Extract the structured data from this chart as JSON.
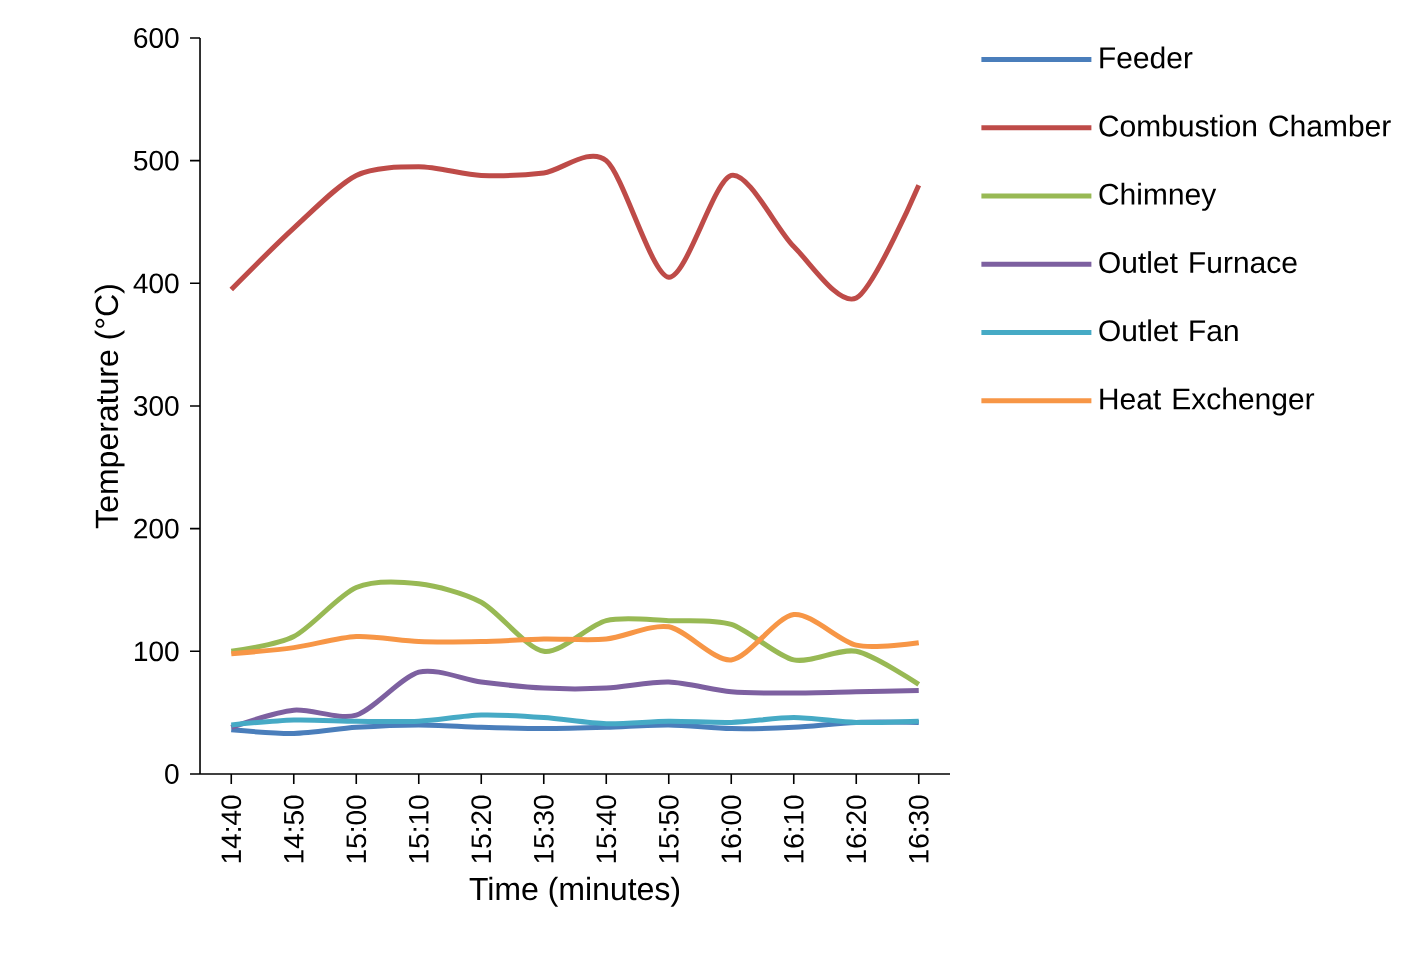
{
  "chart_data": {
    "type": "line",
    "xlabel": "Time (minutes)",
    "ylabel": "Temperature (°C)",
    "categories": [
      "14:40",
      "14:50",
      "15:00",
      "15:10",
      "15:20",
      "15:30",
      "15:40",
      "15:50",
      "16:00",
      "16:10",
      "16:20",
      "16:30"
    ],
    "ylim": [
      0,
      600
    ],
    "yticks": [
      0,
      100,
      200,
      300,
      400,
      500,
      600
    ],
    "grid": false,
    "legend": "right",
    "marker": "none",
    "line_style": "solid",
    "series": [
      {
        "name": "Feeder",
        "color": "#4a7ebb",
        "values": [
          36,
          33,
          38,
          40,
          38,
          37,
          38,
          40,
          37,
          38,
          42,
          42
        ]
      },
      {
        "name": "Combustion Chamber",
        "color": "#be4b48",
        "values": [
          395,
          445,
          488,
          495,
          488,
          490,
          500,
          405,
          488,
          430,
          388,
          480
        ]
      },
      {
        "name": "Chimney",
        "color": "#98b954",
        "values": [
          100,
          112,
          152,
          155,
          140,
          100,
          125,
          125,
          122,
          93,
          100,
          73
        ]
      },
      {
        "name": "Outlet Furnace",
        "color": "#7d60a0",
        "values": [
          38,
          52,
          48,
          83,
          75,
          70,
          70,
          75,
          67,
          66,
          67,
          68
        ]
      },
      {
        "name": "Outlet Fan",
        "color": "#46aac5",
        "values": [
          40,
          44,
          43,
          43,
          48,
          46,
          41,
          43,
          42,
          46,
          42,
          43
        ]
      },
      {
        "name": "Heat Exchenger",
        "color": "#f79646",
        "values": [
          98,
          103,
          112,
          108,
          108,
          110,
          110,
          120,
          93,
          130,
          105,
          107
        ]
      }
    ]
  }
}
